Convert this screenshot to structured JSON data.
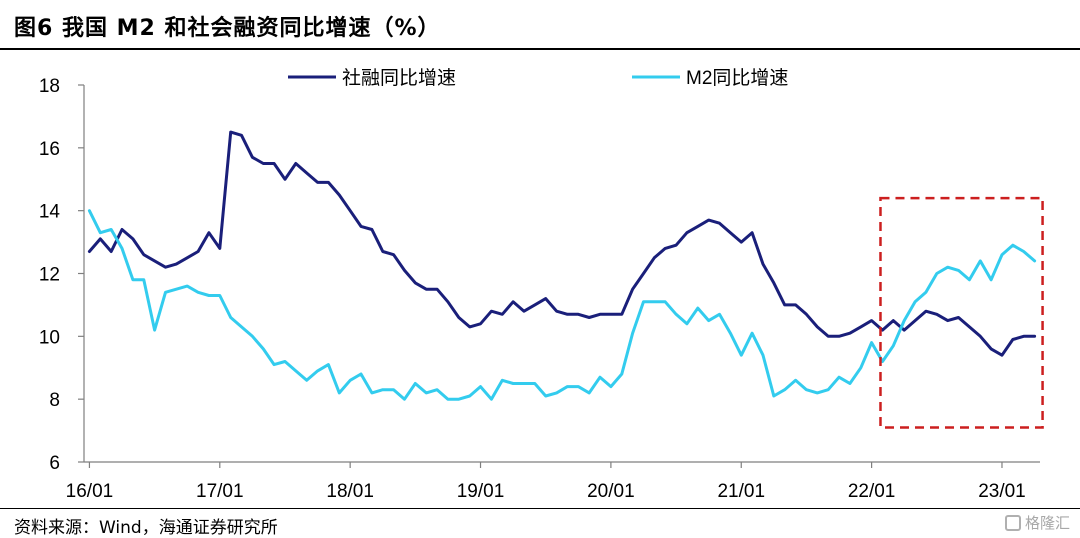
{
  "header": {
    "title": "图6  我国 M2 和社会融资同比增速（%）"
  },
  "footer": {
    "source": "资料来源：Wind，海通证券研究所",
    "watermark": "格隆汇"
  },
  "colors": {
    "social_financing": "#1a1f7a",
    "m2": "#33ccee",
    "highlight_box": "#cc1f1f"
  },
  "chart_data": {
    "type": "line",
    "title": "",
    "xlabel": "",
    "ylabel": "",
    "ylim": [
      6,
      18
    ],
    "yticks": [
      6,
      8,
      10,
      12,
      14,
      16,
      18
    ],
    "xticks": [
      "16/01",
      "17/01",
      "18/01",
      "19/01",
      "20/01",
      "21/01",
      "22/01",
      "23/01"
    ],
    "legend_position": "top",
    "grid": false,
    "highlight": {
      "x_range": [
        "22/02",
        "23/04"
      ],
      "y_range": [
        7.1,
        14.4
      ],
      "style": "dashed-red"
    },
    "x": [
      "16/01",
      "16/02",
      "16/03",
      "16/04",
      "16/05",
      "16/06",
      "16/07",
      "16/08",
      "16/09",
      "16/10",
      "16/11",
      "16/12",
      "17/01",
      "17/02",
      "17/03",
      "17/04",
      "17/05",
      "17/06",
      "17/07",
      "17/08",
      "17/09",
      "17/10",
      "17/11",
      "17/12",
      "18/01",
      "18/02",
      "18/03",
      "18/04",
      "18/05",
      "18/06",
      "18/07",
      "18/08",
      "18/09",
      "18/10",
      "18/11",
      "18/12",
      "19/01",
      "19/02",
      "19/03",
      "19/04",
      "19/05",
      "19/06",
      "19/07",
      "19/08",
      "19/09",
      "19/10",
      "19/11",
      "19/12",
      "20/01",
      "20/02",
      "20/03",
      "20/04",
      "20/05",
      "20/06",
      "20/07",
      "20/08",
      "20/09",
      "20/10",
      "20/11",
      "20/12",
      "21/01",
      "21/02",
      "21/03",
      "21/04",
      "21/05",
      "21/06",
      "21/07",
      "21/08",
      "21/09",
      "21/10",
      "21/11",
      "21/12",
      "22/01",
      "22/02",
      "22/03",
      "22/04",
      "22/05",
      "22/06",
      "22/07",
      "22/08",
      "22/09",
      "22/10",
      "22/11",
      "22/12",
      "23/01",
      "23/02",
      "23/03",
      "23/04"
    ],
    "series": [
      {
        "name": "社融同比增速",
        "values": [
          12.7,
          13.1,
          12.7,
          13.4,
          13.1,
          12.6,
          12.4,
          12.2,
          12.3,
          12.5,
          12.7,
          13.3,
          12.8,
          16.5,
          16.4,
          15.7,
          15.5,
          15.5,
          15.0,
          15.5,
          15.2,
          14.9,
          14.9,
          14.5,
          14.0,
          13.5,
          13.4,
          12.7,
          12.6,
          12.1,
          11.7,
          11.5,
          11.5,
          11.1,
          10.6,
          10.3,
          10.4,
          10.8,
          10.7,
          11.1,
          10.8,
          11.0,
          11.2,
          10.8,
          10.7,
          10.7,
          10.6,
          10.7,
          10.7,
          10.7,
          11.5,
          12.0,
          12.5,
          12.8,
          12.9,
          13.3,
          13.5,
          13.7,
          13.6,
          13.3,
          13.0,
          13.3,
          12.3,
          11.7,
          11.0,
          11.0,
          10.7,
          10.3,
          10.0,
          10.0,
          10.1,
          10.3,
          10.5,
          10.2,
          10.5,
          10.2,
          10.5,
          10.8,
          10.7,
          10.5,
          10.6,
          10.3,
          10.0,
          9.6,
          9.4,
          9.9,
          10.0,
          10.0
        ]
      },
      {
        "name": "M2同比增速",
        "values": [
          14.0,
          13.3,
          13.4,
          12.8,
          11.8,
          11.8,
          10.2,
          11.4,
          11.5,
          11.6,
          11.4,
          11.3,
          11.3,
          10.6,
          10.3,
          10.0,
          9.6,
          9.1,
          9.2,
          8.9,
          8.6,
          8.9,
          9.1,
          8.2,
          8.6,
          8.8,
          8.2,
          8.3,
          8.3,
          8.0,
          8.5,
          8.2,
          8.3,
          8.0,
          8.0,
          8.1,
          8.4,
          8.0,
          8.6,
          8.5,
          8.5,
          8.5,
          8.1,
          8.2,
          8.4,
          8.4,
          8.2,
          8.7,
          8.4,
          8.8,
          10.1,
          11.1,
          11.1,
          11.1,
          10.7,
          10.4,
          10.9,
          10.5,
          10.7,
          10.1,
          9.4,
          10.1,
          9.4,
          8.1,
          8.3,
          8.6,
          8.3,
          8.2,
          8.3,
          8.7,
          8.5,
          9.0,
          9.8,
          9.2,
          9.7,
          10.5,
          11.1,
          11.4,
          12.0,
          12.2,
          12.1,
          11.8,
          12.4,
          11.8,
          12.6,
          12.9,
          12.7,
          12.4
        ]
      }
    ]
  }
}
